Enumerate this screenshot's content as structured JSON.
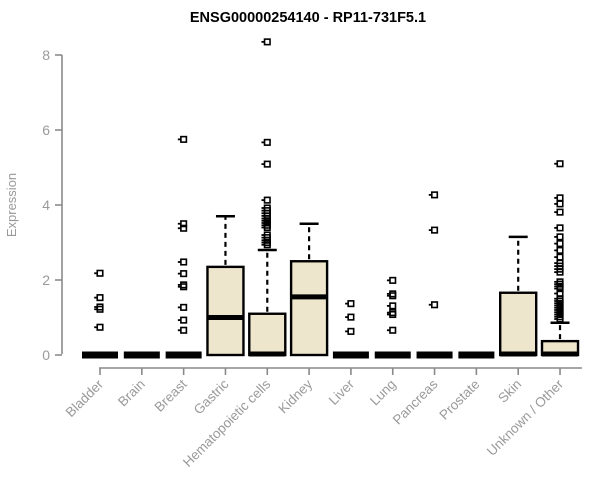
{
  "chart_data": {
    "type": "boxplot",
    "title": "ENSG00000254140 - RP11-731F5.1",
    "ylabel": "Expression",
    "ylim": [
      0,
      8
    ],
    "yticks": [
      0,
      2,
      4,
      6,
      8
    ],
    "grid": false,
    "legend": "none",
    "categories": [
      "Bladder",
      "Brain",
      "Breast",
      "Gastric",
      "Hematopoietic cells",
      "Kidney",
      "Liver",
      "Lung",
      "Pancreas",
      "Prostate",
      "Skin",
      "Unknown / Other"
    ],
    "boxes": [
      {
        "category": "Bladder",
        "q1": 0,
        "median": 0,
        "q3": 0,
        "whisker_low": 0,
        "whisker_high": 0,
        "outliers": [
          2.18,
          1.53,
          1.28,
          1.22,
          0.74
        ]
      },
      {
        "category": "Brain",
        "q1": 0,
        "median": 0,
        "q3": 0,
        "whisker_low": 0,
        "whisker_high": 0,
        "outliers": []
      },
      {
        "category": "Breast",
        "q1": 0,
        "median": 0,
        "q3": 0,
        "whisker_low": 0,
        "whisker_high": 0,
        "outliers": [
          5.75,
          3.5,
          3.38,
          2.48,
          2.17,
          1.87,
          1.82,
          1.27,
          0.93,
          0.66
        ]
      },
      {
        "category": "Gastric",
        "q1": 0,
        "median": 1.0,
        "q3": 2.35,
        "whisker_low": 0,
        "whisker_high": 3.7,
        "outliers": []
      },
      {
        "category": "Hematopoietic cells",
        "q1": 0,
        "median": 0,
        "q3": 1.1,
        "whisker_low": 0,
        "whisker_high": 2.8,
        "outliers": [
          8.35,
          5.67,
          5.09,
          4.13,
          3.92,
          3.85,
          3.78,
          3.71,
          3.64,
          3.58,
          3.52,
          3.46,
          3.4,
          3.2,
          3.13,
          3.06,
          3.0,
          2.94
        ]
      },
      {
        "category": "Kidney",
        "q1": 0,
        "median": 1.55,
        "q3": 2.5,
        "whisker_low": 0,
        "whisker_high": 3.5,
        "outliers": []
      },
      {
        "category": "Liver",
        "q1": 0,
        "median": 0,
        "q3": 0,
        "whisker_low": 0,
        "whisker_high": 0,
        "outliers": [
          1.37,
          1.01,
          0.63
        ]
      },
      {
        "category": "Lung",
        "q1": 0,
        "median": 0,
        "q3": 0,
        "whisker_low": 0,
        "whisker_high": 0,
        "outliers": [
          1.99,
          1.63,
          1.58,
          1.31,
          1.13,
          1.08,
          0.66
        ]
      },
      {
        "category": "Pancreas",
        "q1": 0,
        "median": 0,
        "q3": 0,
        "whisker_low": 0,
        "whisker_high": 0,
        "outliers": [
          4.27,
          3.33,
          1.34
        ]
      },
      {
        "category": "Prostate",
        "q1": 0,
        "median": 0,
        "q3": 0,
        "whisker_low": 0,
        "whisker_high": 0,
        "outliers": []
      },
      {
        "category": "Skin",
        "q1": 0,
        "median": 0,
        "q3": 1.66,
        "whisker_low": 0,
        "whisker_high": 3.15,
        "outliers": []
      },
      {
        "category": "Unknown / Other",
        "q1": 0,
        "median": 0,
        "q3": 0.37,
        "whisker_low": 0,
        "whisker_high": 0.86,
        "outliers": [
          5.1,
          4.19,
          4.03,
          3.81,
          3.39,
          3.15,
          2.97,
          2.79,
          2.61,
          2.45,
          2.37,
          2.29,
          2.21,
          1.95,
          1.89,
          1.83,
          1.77,
          1.64,
          1.5,
          1.44,
          1.38,
          1.32,
          1.26,
          1.2,
          1.14,
          1.08,
          1.02,
          0.96
        ]
      }
    ],
    "colors": {
      "box_fill": "#EDE6CD",
      "box_stroke": "#000000",
      "median": "#000000",
      "whisker": "#000000",
      "outlier": "#000000",
      "axis_line": "#8A8A8A",
      "tick_label": "#9A9A9A",
      "title": "#000000"
    }
  }
}
